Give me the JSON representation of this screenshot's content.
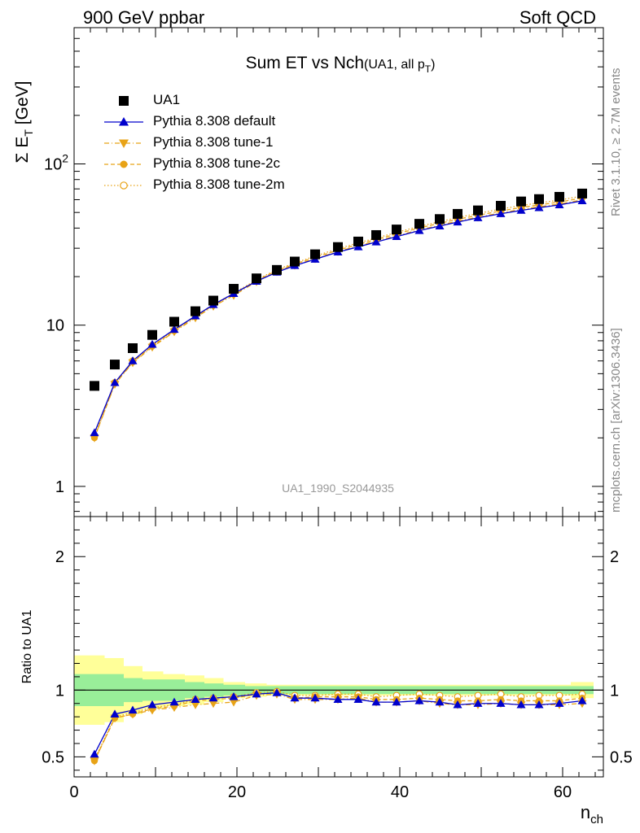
{
  "header": {
    "left": "900 GeV ppbar",
    "right": "Soft QCD"
  },
  "side_labels": {
    "rivet": "Rivet 3.1.10, ≥ 2.7M events",
    "mcplots": "mcplots.cern.ch [arXiv:1306.3436]"
  },
  "plot_title": {
    "main": "Sum ET vs Nch",
    "sub": "(UA1, all p",
    "sub_index": "T",
    "sub_close": ")"
  },
  "analysis_id": "UA1_1990_S2044935",
  "colors": {
    "data": "#000000",
    "default": "#0000cc",
    "tunes": "#e8a317",
    "band_inner": "#99ee99",
    "band_outer": "#ffff99"
  },
  "legend": [
    {
      "label": "UA1",
      "marker": "square",
      "style": "none"
    },
    {
      "label": "Pythia 8.308 default",
      "marker": "triangle-up",
      "style": "solid"
    },
    {
      "label": "Pythia 8.308 tune-1",
      "marker": "triangle-down",
      "style": "dashdot"
    },
    {
      "label": "Pythia 8.308 tune-2c",
      "marker": "circle-filled",
      "style": "dashed"
    },
    {
      "label": "Pythia 8.308 tune-2m",
      "marker": "circle-open",
      "style": "dotted"
    }
  ],
  "chart_data": {
    "type": "scatter",
    "xlabel": "n",
    "xlabel_sub": "ch",
    "ylabel_top": "Σ E",
    "ylabel_top_sub": "T",
    "ylabel_top_unit": " [GeV]",
    "ylabel_ratio": "Ratio to UA1",
    "x_range": [
      0,
      65
    ],
    "y_range_top": [
      0.65,
      700
    ],
    "y_scale_top": "log",
    "y_range_ratio": [
      0.35,
      2.3
    ],
    "x_ticks": [
      0,
      20,
      40,
      60
    ],
    "y_ticks_top": [
      "1",
      "10",
      "10^2"
    ],
    "y_ticks_ratio": [
      "0.5",
      "1",
      "2"
    ],
    "x": [
      2.5,
      5,
      7.2,
      9.6,
      12.3,
      14.9,
      17.1,
      19.6,
      22.4,
      24.9,
      27.1,
      29.6,
      32.4,
      34.9,
      37.1,
      39.6,
      42.4,
      44.9,
      47.1,
      49.6,
      52.4,
      54.9,
      57.1,
      59.6,
      62.4
    ],
    "series": [
      {
        "name": "UA1",
        "values": [
          4.2,
          5.7,
          7.2,
          8.7,
          10.5,
          12.2,
          14.2,
          16.8,
          19.5,
          22.0,
          24.8,
          27.5,
          30.5,
          33.0,
          36.2,
          39.2,
          42.5,
          45.5,
          49.0,
          51.5,
          55.0,
          58.5,
          60.5,
          62.5,
          65.5
        ],
        "ratio_band_inner": [
          0.12,
          0.12,
          0.09,
          0.08,
          0.08,
          0.06,
          0.05,
          0.04,
          0.03,
          0.03,
          0.03,
          0.03,
          0.03,
          0.03,
          0.03,
          0.03,
          0.03,
          0.03,
          0.03,
          0.03,
          0.03,
          0.03,
          0.03,
          0.03,
          0.03
        ],
        "ratio_band_outer": [
          0.26,
          0.24,
          0.18,
          0.14,
          0.12,
          0.11,
          0.09,
          0.06,
          0.05,
          0.04,
          0.04,
          0.04,
          0.04,
          0.04,
          0.04,
          0.04,
          0.04,
          0.04,
          0.04,
          0.04,
          0.04,
          0.04,
          0.04,
          0.04,
          0.06
        ]
      },
      {
        "name": "Pythia 8.308 default",
        "values": [
          2.15,
          4.4,
          6.0,
          7.6,
          9.4,
          11.4,
          13.4,
          15.7,
          18.7,
          21.3,
          23.4,
          25.6,
          28.4,
          30.6,
          32.8,
          35.4,
          38.6,
          41.2,
          43.6,
          46.3,
          49.1,
          51.5,
          53.5,
          55.7,
          59.0
        ],
        "ratio": [
          0.52,
          0.82,
          0.85,
          0.89,
          0.91,
          0.93,
          0.94,
          0.95,
          0.97,
          0.98,
          0.94,
          0.94,
          0.93,
          0.93,
          0.91,
          0.91,
          0.92,
          0.91,
          0.89,
          0.9,
          0.9,
          0.89,
          0.89,
          0.9,
          0.92
        ]
      },
      {
        "name": "Pythia 8.308 tune-1",
        "values": [
          2.0,
          4.3,
          5.85,
          7.3,
          9.1,
          11.1,
          13.1,
          15.3,
          18.6,
          21.5,
          23.5,
          25.8,
          28.6,
          31.0,
          33.2,
          35.8,
          39.0,
          41.6,
          44.2,
          46.7,
          49.7,
          52.2,
          54.2,
          56.4,
          59.8
        ],
        "ratio": [
          0.47,
          0.79,
          0.82,
          0.85,
          0.87,
          0.89,
          0.9,
          0.91,
          0.96,
          0.97,
          0.93,
          0.93,
          0.93,
          0.94,
          0.91,
          0.91,
          0.92,
          0.9,
          0.89,
          0.89,
          0.9,
          0.89,
          0.89,
          0.89,
          0.9
        ]
      },
      {
        "name": "Pythia 8.308 tune-2c",
        "values": [
          2.0,
          4.35,
          5.9,
          7.4,
          9.2,
          11.3,
          13.3,
          15.6,
          18.9,
          21.8,
          23.9,
          26.3,
          29.2,
          31.7,
          34.0,
          36.8,
          40.1,
          42.8,
          45.4,
          48.0,
          51.1,
          53.7,
          55.7,
          58.0,
          61.5
        ],
        "ratio": [
          0.47,
          0.79,
          0.82,
          0.86,
          0.88,
          0.92,
          0.93,
          0.94,
          0.97,
          0.98,
          0.94,
          0.95,
          0.95,
          0.95,
          0.93,
          0.93,
          0.94,
          0.93,
          0.92,
          0.92,
          0.93,
          0.92,
          0.92,
          0.92,
          0.94
        ]
      },
      {
        "name": "Pythia 8.308 tune-2m",
        "values": [
          2.05,
          4.4,
          6.0,
          7.5,
          9.3,
          11.4,
          13.4,
          15.8,
          19.1,
          22.1,
          24.3,
          26.8,
          29.8,
          32.4,
          34.7,
          37.6,
          41.0,
          43.8,
          46.5,
          49.3,
          52.5,
          55.2,
          57.3,
          59.7,
          63.2
        ],
        "ratio": [
          0.48,
          0.8,
          0.83,
          0.87,
          0.89,
          0.93,
          0.94,
          0.95,
          0.98,
          0.99,
          0.96,
          0.96,
          0.97,
          0.97,
          0.95,
          0.96,
          0.97,
          0.96,
          0.95,
          0.96,
          0.97,
          0.95,
          0.96,
          0.96,
          0.97
        ]
      }
    ]
  }
}
